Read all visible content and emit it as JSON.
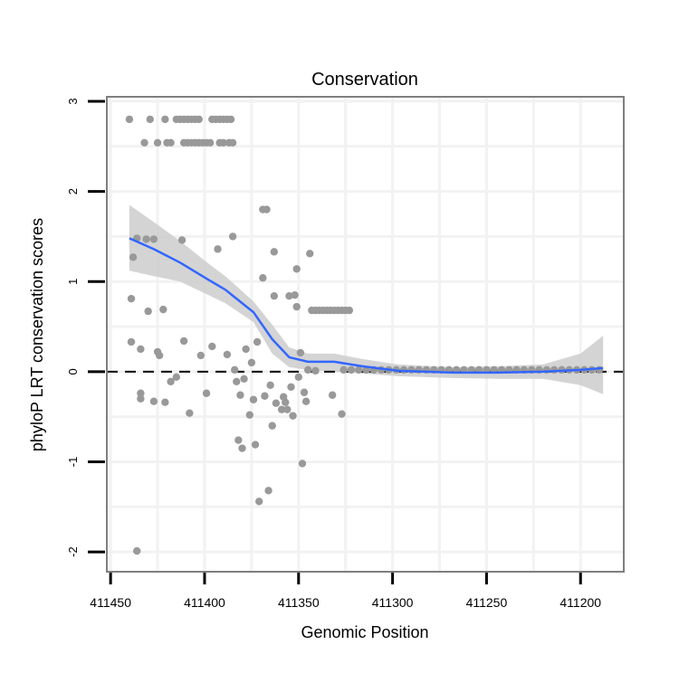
{
  "chart_data": {
    "type": "scatter",
    "title": "Conservation",
    "xlabel": "Genomic Position",
    "ylabel": "phyloP LRT conservation scores",
    "xlim": [
      411452,
      411177
    ],
    "x_reversed": true,
    "ylim": [
      -2.22,
      3.05
    ],
    "x_ticks": [
      411450,
      411400,
      411350,
      411300,
      411250,
      411200
    ],
    "x_tick_labels": [
      "411450",
      "411400",
      "411350",
      "411300",
      "411250",
      "411200"
    ],
    "y_ticks": [
      3,
      2,
      1,
      0,
      -1,
      -2
    ],
    "y_tick_labels": [
      "3",
      "2",
      "1",
      "0",
      "-1",
      "-2"
    ],
    "grid": true,
    "reference_line": {
      "y": 0,
      "style": "dashed",
      "color": "#000000"
    },
    "colors": {
      "points": "#999999",
      "smooth": "#3366ff",
      "band": "#cccccc",
      "border": "#7f7f7f",
      "grid": "#f2f2f2"
    },
    "points": [
      [
        411440,
        2.8
      ],
      [
        411429,
        2.8
      ],
      [
        411421,
        2.8
      ],
      [
        411415,
        2.8
      ],
      [
        411413,
        2.8
      ],
      [
        411411,
        2.8
      ],
      [
        411409,
        2.8
      ],
      [
        411407,
        2.8
      ],
      [
        411405,
        2.8
      ],
      [
        411403,
        2.8
      ],
      [
        411396,
        2.8
      ],
      [
        411394,
        2.8
      ],
      [
        411392,
        2.8
      ],
      [
        411390,
        2.8
      ],
      [
        411388,
        2.8
      ],
      [
        411386,
        2.8
      ],
      [
        411432,
        2.54
      ],
      [
        411425,
        2.54
      ],
      [
        411420,
        2.54
      ],
      [
        411418,
        2.54
      ],
      [
        411411,
        2.54
      ],
      [
        411409,
        2.54
      ],
      [
        411407,
        2.54
      ],
      [
        411405,
        2.54
      ],
      [
        411403,
        2.54
      ],
      [
        411401,
        2.54
      ],
      [
        411399,
        2.54
      ],
      [
        411397,
        2.54
      ],
      [
        411392,
        2.54
      ],
      [
        411390,
        2.54
      ],
      [
        411387,
        2.54
      ],
      [
        411385,
        2.54
      ],
      [
        411369,
        1.8
      ],
      [
        411367,
        1.8
      ],
      [
        411436,
        1.48
      ],
      [
        411431,
        1.47
      ],
      [
        411427,
        1.47
      ],
      [
        411412,
        1.46
      ],
      [
        411385,
        1.5
      ],
      [
        411393,
        1.36
      ],
      [
        411438,
        1.27
      ],
      [
        411363,
        1.33
      ],
      [
        411439,
        0.81
      ],
      [
        411369,
        1.04
      ],
      [
        411363,
        0.84
      ],
      [
        411351,
        1.14
      ],
      [
        411344,
        1.31
      ],
      [
        411355,
        0.84
      ],
      [
        411352,
        0.85
      ],
      [
        411351,
        0.72
      ],
      [
        411430,
        0.67
      ],
      [
        411422,
        0.69
      ],
      [
        411343,
        0.68
      ],
      [
        411341,
        0.68
      ],
      [
        411339,
        0.68
      ],
      [
        411337,
        0.68
      ],
      [
        411335,
        0.68
      ],
      [
        411333,
        0.68
      ],
      [
        411331,
        0.68
      ],
      [
        411329,
        0.68
      ],
      [
        411327,
        0.68
      ],
      [
        411325,
        0.68
      ],
      [
        411323,
        0.68
      ],
      [
        411439,
        0.33
      ],
      [
        411434,
        0.25
      ],
      [
        411425,
        0.22
      ],
      [
        411424,
        0.18
      ],
      [
        411411,
        0.34
      ],
      [
        411402,
        0.18
      ],
      [
        411396,
        0.28
      ],
      [
        411388,
        0.19
      ],
      [
        411378,
        0.25
      ],
      [
        411372,
        0.33
      ],
      [
        411375,
        0.1
      ],
      [
        411384,
        0.02
      ],
      [
        411383,
        -0.11
      ],
      [
        411379,
        -0.08
      ],
      [
        411418,
        -0.11
      ],
      [
        411415,
        -0.06
      ],
      [
        411434,
        -0.24
      ],
      [
        411434,
        -0.3
      ],
      [
        411427,
        -0.33
      ],
      [
        411421,
        -0.34
      ],
      [
        411399,
        -0.24
      ],
      [
        411408,
        -0.46
      ],
      [
        411381,
        -0.26
      ],
      [
        411374,
        -0.31
      ],
      [
        411376,
        -0.48
      ],
      [
        411365,
        -0.15
      ],
      [
        411368,
        -0.27
      ],
      [
        411358,
        -0.28
      ],
      [
        411362,
        -0.35
      ],
      [
        411357,
        -0.34
      ],
      [
        411359,
        -0.42
      ],
      [
        411356,
        -0.42
      ],
      [
        411353,
        -0.49
      ],
      [
        411364,
        -0.6
      ],
      [
        411354,
        -0.17
      ],
      [
        411350,
        -0.06
      ],
      [
        411347,
        -0.23
      ],
      [
        411346,
        -0.33
      ],
      [
        411332,
        -0.26
      ],
      [
        411327,
        -0.47
      ],
      [
        411349,
        0.21
      ],
      [
        411345,
        0.02
      ],
      [
        411341,
        0.01
      ],
      [
        411382,
        -0.76
      ],
      [
        411380,
        -0.85
      ],
      [
        411373,
        -0.81
      ],
      [
        411348,
        -1.02
      ],
      [
        411366,
        -1.32
      ],
      [
        411371,
        -1.44
      ],
      [
        411436,
        -1.99
      ],
      [
        411326,
        0.02
      ],
      [
        411322,
        0.02
      ],
      [
        411318,
        0.02
      ],
      [
        411314,
        0.02
      ],
      [
        411310,
        0.02
      ],
      [
        411306,
        0.02
      ],
      [
        411302,
        0.02
      ],
      [
        411298,
        0.02
      ],
      [
        411294,
        0.02
      ],
      [
        411290,
        0.02
      ],
      [
        411286,
        0.02
      ],
      [
        411282,
        0.02
      ],
      [
        411278,
        0.02
      ],
      [
        411274,
        0.02
      ],
      [
        411270,
        0.02
      ],
      [
        411266,
        0.02
      ],
      [
        411262,
        0.02
      ],
      [
        411258,
        0.02
      ],
      [
        411254,
        0.02
      ],
      [
        411250,
        0.02
      ],
      [
        411246,
        0.02
      ],
      [
        411242,
        0.02
      ],
      [
        411238,
        0.02
      ],
      [
        411234,
        0.02
      ],
      [
        411230,
        0.02
      ],
      [
        411226,
        0.02
      ],
      [
        411222,
        0.02
      ],
      [
        411218,
        0.02
      ],
      [
        411214,
        0.02
      ],
      [
        411210,
        0.02
      ],
      [
        411206,
        0.02
      ],
      [
        411202,
        0.02
      ],
      [
        411198,
        0.02
      ],
      [
        411194,
        0.02
      ],
      [
        411190,
        0.02
      ]
    ],
    "smooth": {
      "x": [
        411440,
        411427,
        411413,
        411398,
        411389,
        411374,
        411364,
        411355,
        411345,
        411331,
        411316,
        411297,
        411268,
        411244,
        411220,
        411200,
        411188
      ],
      "y": [
        1.48,
        1.36,
        1.21,
        1.02,
        0.91,
        0.66,
        0.36,
        0.16,
        0.11,
        0.11,
        0.06,
        0.01,
        -0.01,
        -0.01,
        0.0,
        0.02,
        0.04
      ],
      "lower": [
        1.12,
        1.06,
        1.0,
        0.85,
        0.76,
        0.55,
        0.2,
        0.05,
        0.02,
        0.0,
        -0.02,
        -0.05,
        -0.07,
        -0.08,
        -0.08,
        -0.15,
        -0.25
      ],
      "upper": [
        1.85,
        1.66,
        1.45,
        1.2,
        1.06,
        0.78,
        0.52,
        0.27,
        0.2,
        0.2,
        0.14,
        0.08,
        0.05,
        0.06,
        0.08,
        0.2,
        0.4
      ]
    }
  }
}
